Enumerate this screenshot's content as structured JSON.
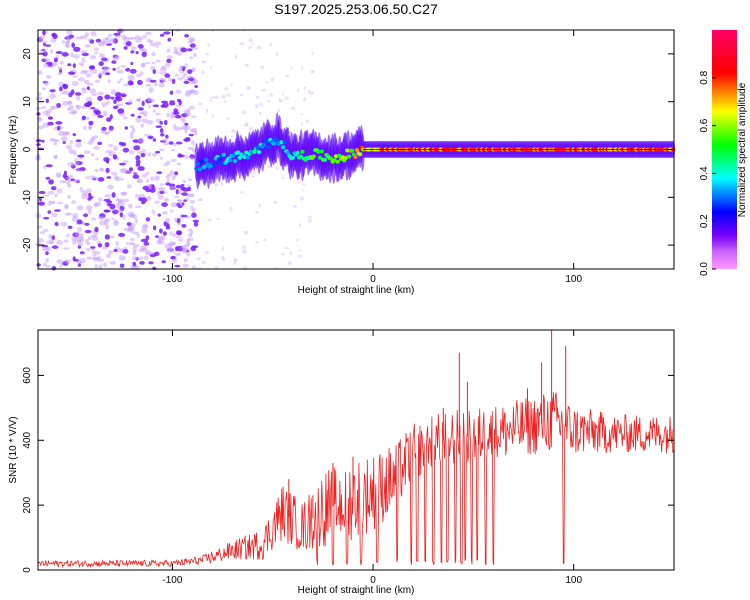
{
  "title": "S197.2025.253.06.50.C27",
  "chart_data": [
    {
      "type": "heatmap",
      "name": "spectrogram",
      "xlabel": "Height of straight line (km)",
      "ylabel": "Frequency (Hz)",
      "xlim": [
        -167,
        150
      ],
      "ylim": [
        -25,
        25
      ],
      "xticks": [
        -100,
        0,
        100
      ],
      "yticks": [
        -20,
        -10,
        0,
        10,
        20
      ],
      "xtick_labels": [
        "-100",
        "0",
        "100"
      ],
      "ytick_labels": [
        "-20",
        "-10",
        "0",
        "10",
        "20"
      ],
      "colorbar": {
        "label": "Normalized spectral amplitude",
        "range": [
          0,
          1
        ],
        "ticks": [
          0.0,
          0.2,
          0.4,
          0.6,
          0.8
        ],
        "tick_labels": [
          "0.0",
          "0.2",
          "0.4",
          "0.6",
          "0.8"
        ],
        "colors": [
          "#ff99ff",
          "#7700ff",
          "#0000ff",
          "#00ffff",
          "#00ff00",
          "#ffff00",
          "#ff0000",
          "#ff0066"
        ]
      },
      "noise_region": [
        -167,
        -88
      ],
      "carrier_frequency": 0,
      "carrier_profile": [
        {
          "x": -88,
          "f": -3.5,
          "amp": 0.3
        },
        {
          "x": -75,
          "f": -2.0,
          "amp": 0.35
        },
        {
          "x": -60,
          "f": -1.0,
          "amp": 0.4
        },
        {
          "x": -48,
          "f": 2.5,
          "amp": 0.35
        },
        {
          "x": -40,
          "f": -1.5,
          "amp": 0.4
        },
        {
          "x": -30,
          "f": -1.0,
          "amp": 0.55
        },
        {
          "x": -20,
          "f": -1.8,
          "amp": 0.5
        },
        {
          "x": -15,
          "f": -1.5,
          "amp": 0.6
        },
        {
          "x": -5,
          "f": 0,
          "amp": 0.7
        },
        {
          "x": 10,
          "f": 0,
          "amp": 0.8
        },
        {
          "x": 30,
          "f": 0,
          "amp": 0.85
        },
        {
          "x": 50,
          "f": 0,
          "amp": 0.9
        },
        {
          "x": 70,
          "f": 0,
          "amp": 0.88
        },
        {
          "x": 90,
          "f": 0,
          "amp": 0.9
        },
        {
          "x": 110,
          "f": 0,
          "amp": 0.85
        },
        {
          "x": 150,
          "f": 0,
          "amp": 0.85
        }
      ]
    },
    {
      "type": "line",
      "name": "snr",
      "xlabel": "Height of straight line (km)",
      "ylabel": "SNR (10 * V/V)",
      "xlim": [
        -167,
        150
      ],
      "ylim": [
        0,
        740
      ],
      "xticks": [
        -100,
        0,
        100
      ],
      "yticks": [
        0,
        200,
        400,
        600
      ],
      "xtick_labels": [
        "-100",
        "0",
        "100"
      ],
      "ytick_labels": [
        "0",
        "200",
        "400",
        "600"
      ],
      "color": "#ee2222",
      "envelope": [
        {
          "x": -167,
          "mean": 20,
          "noise": 10
        },
        {
          "x": -100,
          "mean": 20,
          "noise": 10
        },
        {
          "x": -85,
          "mean": 30,
          "noise": 15
        },
        {
          "x": -70,
          "mean": 60,
          "noise": 30
        },
        {
          "x": -55,
          "mean": 80,
          "noise": 50
        },
        {
          "x": -45,
          "mean": 180,
          "noise": 90
        },
        {
          "x": -35,
          "mean": 130,
          "noise": 80
        },
        {
          "x": -25,
          "mean": 190,
          "noise": 120
        },
        {
          "x": -18,
          "mean": 200,
          "noise": 120
        },
        {
          "x": -10,
          "mean": 220,
          "noise": 130
        },
        {
          "x": 0,
          "mean": 240,
          "noise": 120
        },
        {
          "x": 10,
          "mean": 280,
          "noise": 110
        },
        {
          "x": 20,
          "mean": 360,
          "noise": 90
        },
        {
          "x": 30,
          "mean": 400,
          "noise": 80
        },
        {
          "x": 45,
          "mean": 410,
          "noise": 90
        },
        {
          "x": 60,
          "mean": 420,
          "noise": 90
        },
        {
          "x": 75,
          "mean": 440,
          "noise": 90
        },
        {
          "x": 90,
          "mean": 460,
          "noise": 100
        },
        {
          "x": 100,
          "mean": 430,
          "noise": 80
        },
        {
          "x": 120,
          "mean": 420,
          "noise": 60
        },
        {
          "x": 150,
          "mean": 420,
          "noise": 60
        }
      ],
      "spikes": [
        {
          "x": -42,
          "y": 280
        },
        {
          "x": -30,
          "y": 230
        },
        {
          "x": -20,
          "y": 330
        },
        {
          "x": -10,
          "y": 350
        },
        {
          "x": 35,
          "y": 500
        },
        {
          "x": 43,
          "y": 670
        },
        {
          "x": 47,
          "y": 580
        },
        {
          "x": 77,
          "y": 560
        },
        {
          "x": 84,
          "y": 640
        },
        {
          "x": 89,
          "y": 740
        },
        {
          "x": 96,
          "y": 690
        }
      ],
      "dips": [
        -28,
        -20,
        -13,
        -6,
        2,
        12,
        19,
        22,
        26,
        30,
        34,
        37,
        41,
        44,
        46,
        49,
        52,
        56,
        60,
        95
      ]
    }
  ]
}
